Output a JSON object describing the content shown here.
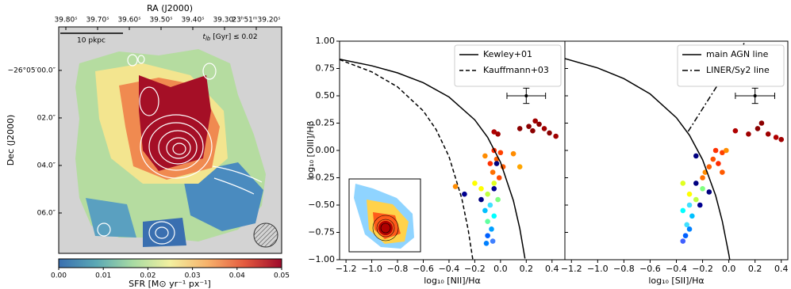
{
  "chart_data": [
    {
      "type": "image",
      "title": "RA (J2000)",
      "ylabel": "Dec (J2000)",
      "xlim": [
        39.8225,
        39.12
      ],
      "xticks": [
        {
          "value": 39.8,
          "label": "39.80ˢ"
        },
        {
          "value": 39.7,
          "label": "39.70ˢ"
        },
        {
          "value": 39.6,
          "label": "39.60ˢ"
        },
        {
          "value": 39.5,
          "label": "39.50ˢ"
        },
        {
          "value": 39.4,
          "label": "39.40ˢ"
        },
        {
          "value": 39.3,
          "label": "39.30ˢ"
        },
        {
          "value": 39.2,
          "label": "23ʰ51ᵐ39.20ˢ"
        }
      ],
      "ylim": [
        7.7,
        -1.83
      ],
      "yticks": [
        {
          "value": 0,
          "label": "−26°05′00.0″"
        },
        {
          "value": 2,
          "label": "02.0″"
        },
        {
          "value": 4,
          "label": "04.0″"
        },
        {
          "value": 6,
          "label": "06.0″"
        }
      ],
      "scale_bar": "10 pkpc",
      "annotation": {
        "symbol": "t",
        "subscript": "lb",
        "text": " [Gyr] ≤ 0.02"
      },
      "colorbar": {
        "label": "SFR [M⊙ yr⁻¹ px⁻¹]",
        "lim": [
          0,
          0.05
        ],
        "ticks": [
          {
            "value": 0,
            "label": "0.00"
          },
          {
            "value": 0.01,
            "label": "0.01"
          },
          {
            "value": 0.02,
            "label": "0.02"
          },
          {
            "value": 0.03,
            "label": "0.03"
          },
          {
            "value": 0.04,
            "label": "0.04"
          },
          {
            "value": 0.05,
            "label": "0.05"
          }
        ],
        "colors": [
          "#3a6fb0",
          "#5aa8b5",
          "#a8dba3",
          "#f3f0a0",
          "#f7b26b",
          "#e45a3f",
          "#9e0a2b"
        ]
      }
    },
    {
      "type": "scatter",
      "xlabel": "log₁₀ [NII]/Hα",
      "ylabel": "log₁₀ [OIII]/Hβ",
      "xlim": [
        -1.25,
        0.5
      ],
      "xticks": [
        {
          "value": -1.2,
          "label": "−1.2"
        },
        {
          "value": -1.0,
          "label": "−1.0"
        },
        {
          "value": -0.8,
          "label": "−0.8"
        },
        {
          "value": -0.6,
          "label": "−0.6"
        },
        {
          "value": -0.4,
          "label": "−0.4"
        },
        {
          "value": -0.2,
          "label": "−0.2"
        },
        {
          "value": 0,
          "label": "0.0"
        },
        {
          "value": 0.2,
          "label": "0.2"
        },
        {
          "value": 0.4,
          "label": "0.4"
        }
      ],
      "ylim": [
        -1,
        1
      ],
      "yticks": [
        {
          "value": -1,
          "label": "−1.00"
        },
        {
          "value": -0.75,
          "label": "−0.75"
        },
        {
          "value": -0.5,
          "label": "−0.50"
        },
        {
          "value": -0.25,
          "label": "−0.25"
        },
        {
          "value": 0,
          "label": "0.00"
        },
        {
          "value": 0.25,
          "label": "0.25"
        },
        {
          "value": 0.5,
          "label": "0.50"
        },
        {
          "value": 0.75,
          "label": "0.75"
        },
        {
          "value": 1,
          "label": "1.00"
        }
      ],
      "legend": "upper right",
      "series": [
        {
          "name": "Kewley+01",
          "style": "solid",
          "color": "#000000",
          "x": [
            -1.25,
            -1.0,
            -0.8,
            -0.6,
            -0.4,
            -0.2,
            -0.1,
            0,
            0.1,
            0.15,
            0.19
          ],
          "values": [
            0.835,
            0.775,
            0.71,
            0.62,
            0.489,
            0.28,
            0.12,
            -0.108,
            -0.459,
            -0.716,
            -0.989
          ]
        },
        {
          "name": "Kauffmann+03",
          "style": "dashed",
          "color": "#000000",
          "x": [
            -1.25,
            -1.0,
            -0.8,
            -0.6,
            -0.5,
            -0.4,
            -0.3,
            -0.25,
            -0.215
          ],
          "values": [
            0.831,
            0.719,
            0.582,
            0.362,
            0.191,
            -0.056,
            -0.443,
            -0.733,
            -1.0
          ]
        }
      ],
      "points": {
        "x": [
          0.15,
          0.22,
          0.27,
          0.3,
          0.34,
          0.38,
          0.43,
          0.25,
          -0.05,
          -0.02,
          -0.05,
          0,
          -0.03,
          -0.08,
          0.02,
          -0.06,
          -0.01,
          -0.12,
          0.1,
          0.15,
          -0.35,
          -0.15,
          -0.1,
          -0.05,
          -0.2,
          -0.02,
          -0.08,
          -0.12,
          -0.05,
          -0.1,
          -0.07,
          -0.1,
          -0.06,
          -0.11,
          -0.15,
          -0.28,
          -0.05,
          -0.03
        ],
        "values": [
          0.2,
          0.22,
          0.27,
          0.24,
          0.2,
          0.16,
          0.13,
          0.18,
          0.17,
          0.15,
          0,
          -0.02,
          -0.08,
          -0.12,
          -0.15,
          -0.2,
          -0.25,
          -0.05,
          -0.03,
          -0.15,
          -0.33,
          -0.35,
          -0.4,
          -0.3,
          -0.3,
          -0.45,
          -0.5,
          -0.55,
          -0.6,
          -0.65,
          -0.72,
          -0.78,
          -0.83,
          -0.85,
          -0.45,
          -0.4,
          -0.35,
          -0.12
        ],
        "colors": [
          "#8b0000",
          "#8b0000",
          "#a00000",
          "#8b0000",
          "#a00000",
          "#8b0000",
          "#a00000",
          "#8b0000",
          "#b00000",
          "#a00000",
          "#ff2a00",
          "#ff4000",
          "#ff6000",
          "#ff3000",
          "#ff5a00",
          "#ff7000",
          "#ff4a00",
          "#ff8c00",
          "#ff8c00",
          "#ffa500",
          "#ff8c00",
          "#ffff00",
          "#c0ff40",
          "#e0ff20",
          "#ffff00",
          "#80ff80",
          "#40e0ff",
          "#00c0ff",
          "#00ffff",
          "#60ffa0",
          "#00a0ff",
          "#0060ff",
          "#4080ff",
          "#0080ff",
          "#000080",
          "#000090",
          "#000090",
          "#000080"
        ]
      },
      "error_bar": {
        "x": 0.2,
        "y": 0.5,
        "xerr": 0.15,
        "yerr": 0.07
      }
    },
    {
      "type": "scatter",
      "xlabel": "log₁₀ [SII]/Hα",
      "xlim": [
        -1.25,
        0.45
      ],
      "xticks": [
        {
          "value": -1.2,
          "label": "−1.2"
        },
        {
          "value": -1.0,
          "label": "−1.0"
        },
        {
          "value": -0.8,
          "label": "−0.8"
        },
        {
          "value": -0.6,
          "label": "−0.6"
        },
        {
          "value": -0.4,
          "label": "−0.4"
        },
        {
          "value": -0.2,
          "label": "−0.2"
        },
        {
          "value": 0,
          "label": "0.0"
        },
        {
          "value": 0.2,
          "label": "0.2"
        },
        {
          "value": 0.4,
          "label": "0.4"
        }
      ],
      "ylim": [
        -1,
        1
      ],
      "sharey": true,
      "legend": "upper right",
      "series": [
        {
          "name": "main AGN line",
          "style": "solid",
          "color": "#000000",
          "x": [
            -1.25,
            -1.0,
            -0.8,
            -0.6,
            -0.4,
            -0.3,
            -0.2,
            -0.1,
            -0.05,
            0,
            0.007
          ],
          "values": [
            0.841,
            0.755,
            0.657,
            0.517,
            0.3,
            0.139,
            -0.085,
            -0.414,
            -0.646,
            -0.95,
            -1.0
          ]
        },
        {
          "name": "LINER/Sy2 line",
          "style": "dashdot",
          "color": "#000000",
          "x": [
            -0.31,
            0.127
          ],
          "values": [
            0.174,
            1.0
          ]
        }
      ],
      "points": {
        "x": [
          0.05,
          0.15,
          0.22,
          0.25,
          0.3,
          0.36,
          0.4,
          -0.1,
          -0.05,
          -0.12,
          -0.15,
          -0.08,
          -0.2,
          -0.05,
          -0.25,
          -0.02,
          -0.18,
          -0.35,
          -0.3,
          -0.2,
          -0.25,
          -0.3,
          -0.35,
          -0.28,
          -0.32,
          -0.3,
          -0.33,
          -0.35,
          -0.22,
          -0.25,
          -0.15
        ],
        "values": [
          0.18,
          0.15,
          0.2,
          0.25,
          0.15,
          0.12,
          0.1,
          0,
          -0.02,
          -0.08,
          -0.15,
          -0.12,
          -0.25,
          -0.2,
          -0.05,
          0,
          -0.2,
          -0.3,
          -0.4,
          -0.35,
          -0.45,
          -0.5,
          -0.55,
          -0.6,
          -0.68,
          -0.72,
          -0.78,
          -0.83,
          -0.5,
          -0.3,
          -0.38
        ],
        "colors": [
          "#b00000",
          "#a00000",
          "#8b0000",
          "#8b0000",
          "#a00000",
          "#b00000",
          "#a00000",
          "#ff3000",
          "#ff4000",
          "#ff5000",
          "#ff6000",
          "#ff2a00",
          "#ff7000",
          "#ff5a00",
          "#000080",
          "#ff8c00",
          "#ff8c00",
          "#e0ff20",
          "#ffff00",
          "#80ff80",
          "#c0ff40",
          "#40e0ff",
          "#00ffff",
          "#00c0ff",
          "#40e0ff",
          "#0080ff",
          "#0060ff",
          "#4060ff",
          "#000090",
          "#000080",
          "#000080"
        ]
      },
      "error_bar": {
        "x": 0.2,
        "y": 0.5,
        "xerr": 0.15,
        "yerr": 0.07
      }
    }
  ]
}
